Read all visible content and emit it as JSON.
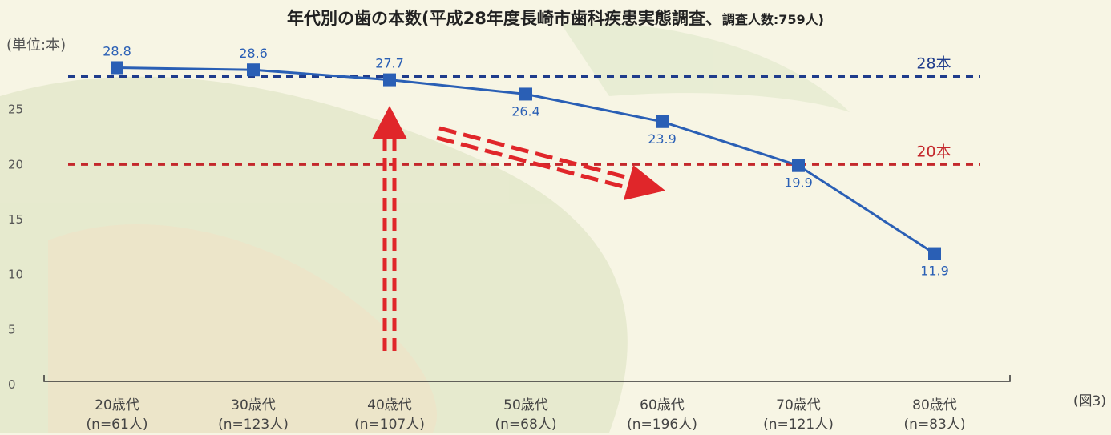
{
  "chart_data": {
    "type": "line",
    "title_main": "年代別の歯の本数(平成28年度長崎市歯科疾患実態調査、",
    "title_small": "調査人数:759人)",
    "unit_label": "(単位:本)",
    "figure_label": "(図3)",
    "y_ticks": [
      "0",
      "5",
      "10",
      "15",
      "20",
      "25"
    ],
    "ylim": [
      0,
      30
    ],
    "categories": [
      {
        "age": "20歳代",
        "n": "(n=61人)"
      },
      {
        "age": "30歳代",
        "n": "(n=123人)"
      },
      {
        "age": "40歳代",
        "n": "(n=107人)"
      },
      {
        "age": "50歳代",
        "n": "(n=68人)"
      },
      {
        "age": "60歳代",
        "n": "(n=196人)"
      },
      {
        "age": "70歳代",
        "n": "(n=121人)"
      },
      {
        "age": "80歳代",
        "n": "(n=83人)"
      }
    ],
    "values": [
      28.8,
      28.6,
      27.7,
      26.4,
      23.9,
      19.9,
      11.9
    ],
    "value_labels": [
      "28.8",
      "28.6",
      "27.7",
      "26.4",
      "23.9",
      "19.9",
      "11.9"
    ],
    "reference_lines": [
      {
        "value": 28,
        "label": "28本",
        "color": "#1f3c8c"
      },
      {
        "value": 20,
        "label": "20本",
        "color": "#c4282c"
      }
    ],
    "series_color": "#2a5fb5",
    "arrow_color": "#e0262a",
    "grid": false
  }
}
